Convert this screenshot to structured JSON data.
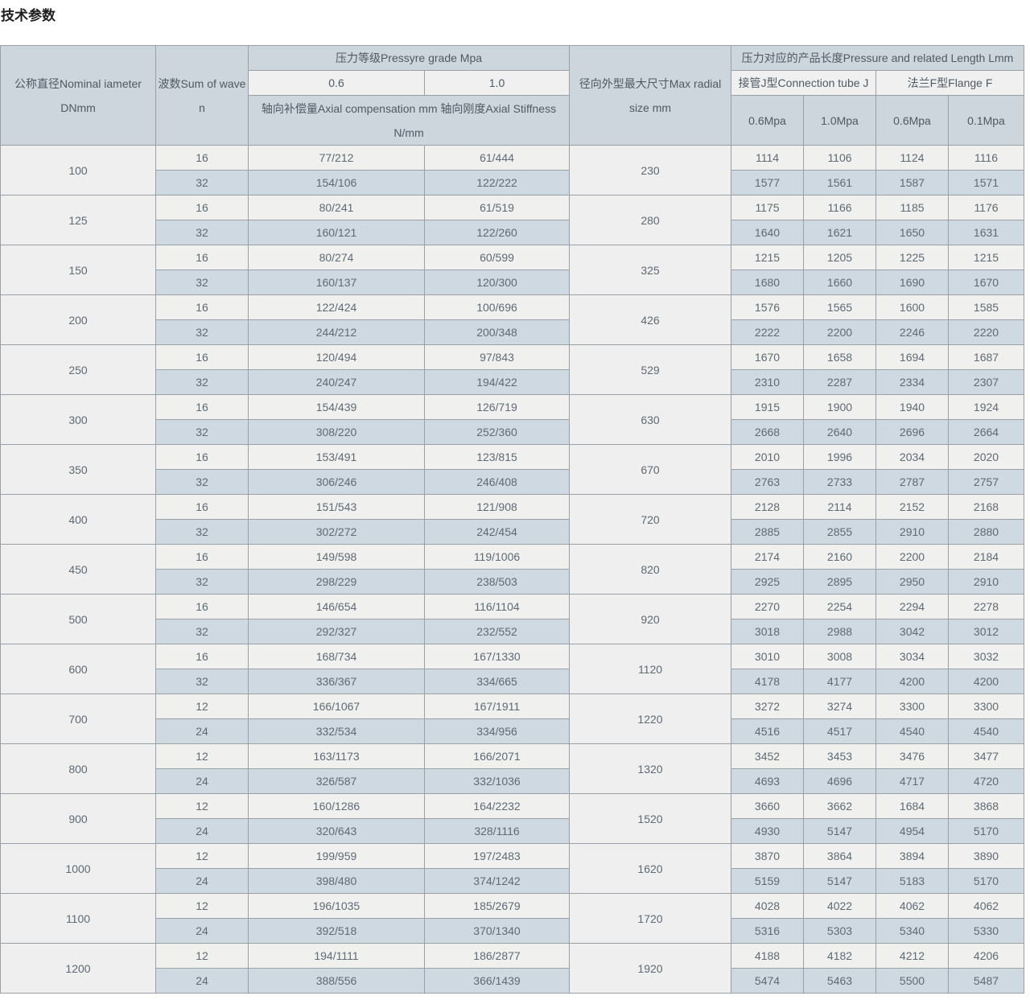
{
  "page": {
    "title": "技术参数"
  },
  "colors": {
    "header_bg": "#cdd5dd",
    "header_light_bg": "#f0f0f0",
    "row_light_bg": "#f0f0ef",
    "row_blue_bg": "#ced9e2",
    "border": "#9aa0a6",
    "text": "#5f6a74",
    "title_text": "#1f1f1f"
  },
  "table": {
    "headers": {
      "dn_line1": "公称直径Nominal iameter",
      "dn_line2": "DNmm",
      "wave_line1": "波数Sum of wave",
      "wave_line2": "n",
      "pressure_grade": "压力等级Pressyre grade Mpa",
      "grade_06": "0.6",
      "grade_10": "1.0",
      "axial_line1": "轴向补偿量Axial compensation mm 轴向刚度Axial Stiffness",
      "axial_line2": "N/mm",
      "radial_line1": "径向外型最大尺寸Max radial",
      "radial_line2": "size mm",
      "length_group": "压力对应的产品长度Pressure and related Length Lmm",
      "conn_tube": "接管J型Connection tube J",
      "flange": "法兰F型Flange F",
      "j_06mpa": "0.6Mpa",
      "j_10mpa": "1.0Mpa",
      "f_06mpa": "0.6Mpa",
      "f_01mpa": "0.1Mpa"
    },
    "groups": [
      {
        "dn": "100",
        "radial": "230",
        "rows": [
          [
            "16",
            "77/212",
            "61/444",
            "1114",
            "1106",
            "1124",
            "1116"
          ],
          [
            "32",
            "154/106",
            "122/222",
            "1577",
            "1561",
            "1587",
            "1571"
          ]
        ]
      },
      {
        "dn": "125",
        "radial": "280",
        "rows": [
          [
            "16",
            "80/241",
            "61/519",
            "1175",
            "1166",
            "1185",
            "1176"
          ],
          [
            "32",
            "160/121",
            "122/260",
            "1640",
            "1621",
            "1650",
            "1631"
          ]
        ]
      },
      {
        "dn": "150",
        "radial": "325",
        "rows": [
          [
            "16",
            "80/274",
            "60/599",
            "1215",
            "1205",
            "1225",
            "1215"
          ],
          [
            "32",
            "160/137",
            "120/300",
            "1680",
            "1660",
            "1690",
            "1670"
          ]
        ]
      },
      {
        "dn": "200",
        "radial": "426",
        "rows": [
          [
            "16",
            "122/424",
            "100/696",
            "1576",
            "1565",
            "1600",
            "1585"
          ],
          [
            "32",
            "244/212",
            "200/348",
            "2222",
            "2200",
            "2246",
            "2220"
          ]
        ]
      },
      {
        "dn": "250",
        "radial": "529",
        "rows": [
          [
            "16",
            "120/494",
            "97/843",
            "1670",
            "1658",
            "1694",
            "1687"
          ],
          [
            "32",
            "240/247",
            "194/422",
            "2310",
            "2287",
            "2334",
            "2307"
          ]
        ]
      },
      {
        "dn": "300",
        "radial": "630",
        "rows": [
          [
            "16",
            "154/439",
            "126/719",
            "1915",
            "1900",
            "1940",
            "1924"
          ],
          [
            "32",
            "308/220",
            "252/360",
            "2668",
            "2640",
            "2696",
            "2664"
          ]
        ]
      },
      {
        "dn": "350",
        "radial": "670",
        "rows": [
          [
            "16",
            "153/491",
            "123/815",
            "2010",
            "1996",
            "2034",
            "2020"
          ],
          [
            "32",
            "306/246",
            "246/408",
            "2763",
            "2733",
            "2787",
            "2757"
          ]
        ]
      },
      {
        "dn": "400",
        "radial": "720",
        "rows": [
          [
            "16",
            "151/543",
            "121/908",
            "2128",
            "2114",
            "2152",
            "2168"
          ],
          [
            "32",
            "302/272",
            "242/454",
            "2885",
            "2855",
            "2910",
            "2880"
          ]
        ]
      },
      {
        "dn": "450",
        "radial": "820",
        "rows": [
          [
            "16",
            "149/598",
            "119/1006",
            "2174",
            "2160",
            "2200",
            "2184"
          ],
          [
            "32",
            "298/229",
            "238/503",
            "2925",
            "2895",
            "2950",
            "2910"
          ]
        ]
      },
      {
        "dn": "500",
        "radial": "920",
        "rows": [
          [
            "16",
            "146/654",
            "116/1104",
            "2270",
            "2254",
            "2294",
            "2278"
          ],
          [
            "32",
            "292/327",
            "232/552",
            "3018",
            "2988",
            "3042",
            "3012"
          ]
        ]
      },
      {
        "dn": "600",
        "radial": "1120",
        "rows": [
          [
            "16",
            "168/734",
            "167/1330",
            "3010",
            "3008",
            "3034",
            "3032"
          ],
          [
            "32",
            "336/367",
            "334/665",
            "4178",
            "4177",
            "4200",
            "4200"
          ]
        ]
      },
      {
        "dn": "700",
        "radial": "1220",
        "rows": [
          [
            "12",
            "166/1067",
            "167/1911",
            "3272",
            "3274",
            "3300",
            "3300"
          ],
          [
            "24",
            "332/534",
            "334/956",
            "4516",
            "4517",
            "4540",
            "4540"
          ]
        ]
      },
      {
        "dn": "800",
        "radial": "1320",
        "rows": [
          [
            "12",
            "163/1173",
            "166/2071",
            "3452",
            "3453",
            "3476",
            "3477"
          ],
          [
            "24",
            "326/587",
            "332/1036",
            "4693",
            "4696",
            "4717",
            "4720"
          ]
        ]
      },
      {
        "dn": "900",
        "radial": "1520",
        "rows": [
          [
            "12",
            "160/1286",
            "164/2232",
            "3660",
            "3662",
            "1684",
            "3868"
          ],
          [
            "24",
            "320/643",
            "328/1116",
            "4930",
            "5147",
            "4954",
            "5170"
          ]
        ]
      },
      {
        "dn": "1000",
        "radial": "1620",
        "rows": [
          [
            "12",
            "199/959",
            "197/2483",
            "3870",
            "3864",
            "3894",
            "3890"
          ],
          [
            "24",
            "398/480",
            "374/1242",
            "5159",
            "5147",
            "5183",
            "5170"
          ]
        ]
      },
      {
        "dn": "1100",
        "radial": "1720",
        "rows": [
          [
            "12",
            "196/1035",
            "185/2679",
            "4028",
            "4022",
            "4062",
            "4062"
          ],
          [
            "24",
            "392/518",
            "370/1340",
            "5316",
            "5303",
            "5340",
            "5330"
          ]
        ]
      },
      {
        "dn": "1200",
        "radial": "1920",
        "rows": [
          [
            "12",
            "194/1111",
            "186/2877",
            "4188",
            "4182",
            "4212",
            "4206"
          ],
          [
            "24",
            "388/556",
            "366/1439",
            "5474",
            "5463",
            "5500",
            "5487"
          ]
        ]
      }
    ]
  }
}
